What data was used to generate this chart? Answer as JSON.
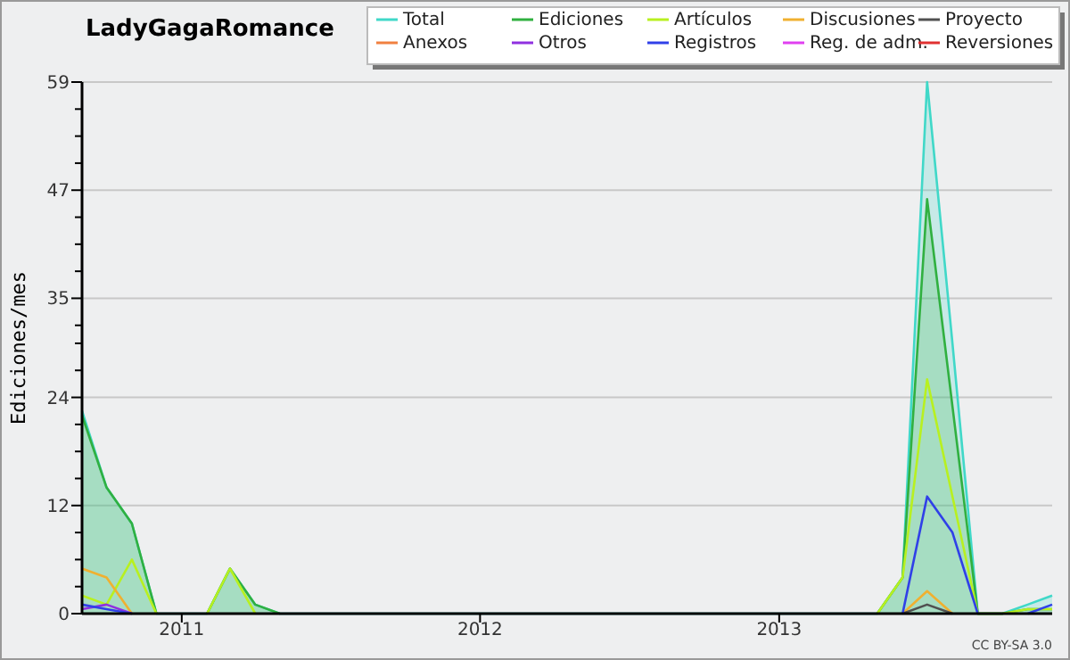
{
  "chart_data": {
    "type": "line",
    "title": "LadyGagaRomance",
    "ylabel": "Ediciones/mes",
    "x": [
      "2010-09",
      "2010-10",
      "2010-11",
      "2010-12",
      "2011-01",
      "2011-02",
      "2011-03",
      "2011-04",
      "2011-05",
      "2011-06",
      "2011-07",
      "2011-08",
      "2011-09",
      "2011-10",
      "2011-11",
      "2011-12",
      "2012-01",
      "2012-02",
      "2012-03",
      "2012-04",
      "2012-05",
      "2012-06",
      "2012-07",
      "2012-08",
      "2012-09",
      "2012-10",
      "2012-11",
      "2012-12",
      "2013-01",
      "2013-02",
      "2013-03",
      "2013-04",
      "2013-05",
      "2013-06",
      "2013-07",
      "2013-08",
      "2013-09",
      "2013-10",
      "2013-11",
      "2013-12"
    ],
    "xlim": [
      "2010-09",
      "2013-12"
    ],
    "xticks": [
      {
        "value": "2011-01",
        "label": "2011"
      },
      {
        "value": "2012-01",
        "label": "2012"
      },
      {
        "value": "2013-01",
        "label": "2013"
      }
    ],
    "ylim": [
      0,
      59
    ],
    "yticks": [
      0,
      {
        "value": 3,
        "label": null
      },
      {
        "value": 6,
        "label": null
      },
      {
        "value": 9,
        "label": null
      },
      12,
      {
        "value": 15,
        "label": null
      },
      {
        "value": 18,
        "label": null
      },
      {
        "value": 21,
        "label": null
      },
      24,
      {
        "value": 27,
        "label": null
      },
      {
        "value": 30,
        "label": null
      },
      {
        "value": 32,
        "label": null
      },
      35,
      {
        "value": 38,
        "label": null
      },
      {
        "value": 41,
        "label": null
      },
      {
        "value": 44,
        "label": null
      },
      47,
      {
        "value": 50,
        "label": null
      },
      {
        "value": 53,
        "label": null
      },
      {
        "value": 56,
        "label": null
      },
      59
    ],
    "grid": "y",
    "legend": "top right",
    "marker": "none",
    "line_style": "solid",
    "series": [
      {
        "name": "Total",
        "type": "area",
        "color": "#40d8c8",
        "values": [
          22.5,
          14,
          10,
          0,
          0,
          0,
          5,
          1,
          0,
          0,
          0,
          0,
          0,
          0,
          0,
          0,
          0,
          0,
          0,
          0,
          0,
          0,
          0,
          0,
          0,
          0,
          0,
          0,
          0,
          0,
          0,
          0,
          0,
          4,
          59,
          30,
          0,
          0,
          1,
          2
        ]
      },
      {
        "name": "Ediciones",
        "type": "area",
        "color": "#30b040",
        "values": [
          22,
          14,
          10,
          0,
          null,
          0,
          5,
          1,
          0,
          null,
          null,
          null,
          null,
          null,
          null,
          null,
          null,
          null,
          null,
          null,
          null,
          null,
          null,
          null,
          null,
          null,
          null,
          null,
          null,
          null,
          null,
          null,
          0,
          4,
          46,
          23,
          0,
          0,
          0.5,
          0.5
        ]
      },
      {
        "name": "Artículos",
        "color": "#b8f020",
        "values": [
          2,
          1,
          6,
          0,
          null,
          0,
          5,
          0,
          null,
          null,
          null,
          null,
          null,
          null,
          null,
          null,
          null,
          null,
          null,
          null,
          null,
          null,
          null,
          null,
          null,
          null,
          null,
          null,
          null,
          null,
          null,
          null,
          0,
          4,
          26,
          13,
          0,
          0,
          0.5,
          0.5
        ]
      },
      {
        "name": "Discusiones",
        "color": "#f0b030",
        "values": [
          5,
          4,
          0,
          null,
          null,
          null,
          null,
          null,
          null,
          null,
          null,
          null,
          null,
          null,
          null,
          null,
          null,
          null,
          null,
          null,
          null,
          null,
          null,
          null,
          null,
          null,
          null,
          null,
          null,
          null,
          null,
          null,
          null,
          0,
          2.5,
          0,
          null,
          null,
          null,
          null
        ]
      },
      {
        "name": "Proyecto",
        "color": "#505050",
        "values": [
          null,
          null,
          null,
          null,
          null,
          null,
          null,
          null,
          null,
          null,
          null,
          null,
          null,
          null,
          null,
          null,
          null,
          null,
          null,
          null,
          null,
          null,
          null,
          null,
          null,
          null,
          null,
          null,
          null,
          null,
          null,
          null,
          null,
          0,
          1,
          0,
          null,
          null,
          null,
          null
        ]
      },
      {
        "name": "Anexos",
        "color": "#f08040",
        "values": [
          null,
          null,
          null,
          null,
          null,
          null,
          null,
          null,
          null,
          null,
          null,
          null,
          null,
          null,
          null,
          null,
          null,
          null,
          null,
          null,
          null,
          null,
          null,
          null,
          null,
          null,
          null,
          null,
          null,
          null,
          null,
          null,
          null,
          null,
          null,
          null,
          null,
          null,
          null,
          null
        ]
      },
      {
        "name": "Otros",
        "color": "#9030e0",
        "values": [
          0.5,
          1,
          0,
          null,
          null,
          null,
          null,
          null,
          null,
          null,
          null,
          null,
          null,
          null,
          null,
          null,
          null,
          null,
          null,
          null,
          null,
          null,
          null,
          null,
          null,
          null,
          null,
          null,
          null,
          null,
          null,
          null,
          null,
          null,
          null,
          null,
          null,
          null,
          null,
          null
        ]
      },
      {
        "name": "Registros",
        "color": "#3040e8",
        "values": [
          1,
          0.5,
          0,
          null,
          null,
          null,
          null,
          null,
          null,
          null,
          null,
          null,
          null,
          null,
          null,
          null,
          null,
          null,
          null,
          null,
          null,
          null,
          null,
          null,
          null,
          null,
          null,
          null,
          null,
          null,
          null,
          null,
          null,
          0,
          13,
          9,
          0,
          null,
          0,
          1
        ]
      },
      {
        "name": "Reg. de adm.",
        "color": "#e040f0",
        "values": [
          null,
          null,
          null,
          null,
          null,
          null,
          null,
          null,
          null,
          null,
          null,
          null,
          null,
          null,
          null,
          null,
          null,
          null,
          null,
          null,
          null,
          null,
          null,
          null,
          null,
          null,
          null,
          null,
          null,
          null,
          null,
          null,
          null,
          null,
          null,
          null,
          null,
          null,
          null,
          null
        ]
      },
      {
        "name": "Reversiones",
        "color": "#e03030",
        "values": [
          null,
          null,
          null,
          null,
          null,
          null,
          null,
          null,
          null,
          null,
          null,
          null,
          null,
          null,
          null,
          null,
          null,
          null,
          null,
          null,
          null,
          null,
          null,
          null,
          null,
          null,
          null,
          null,
          null,
          null,
          null,
          null,
          null,
          null,
          null,
          null,
          null,
          null,
          null,
          null
        ]
      }
    ],
    "annotations": [
      "CC BY-SA 3.0"
    ]
  }
}
